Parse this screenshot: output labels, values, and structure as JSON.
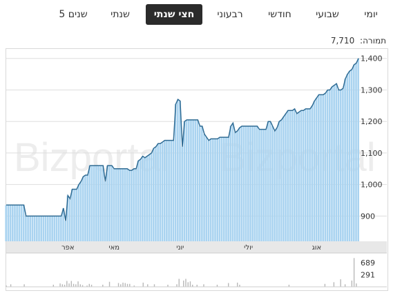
{
  "tabs": [
    {
      "label": "יומי",
      "active": false
    },
    {
      "label": "שבועי",
      "active": false
    },
    {
      "label": "חודשי",
      "active": false
    },
    {
      "label": "רבעוני",
      "active": false
    },
    {
      "label": "חצי שנתי",
      "active": true
    },
    {
      "label": "שנתי",
      "active": false
    },
    {
      "label": "5 שנים",
      "active": false
    }
  ],
  "price_label": "תמורה:",
  "price_value": "7,710",
  "watermark": [
    "Bizportal",
    "Bizportal"
  ],
  "colors": {
    "line": "#2f6b93",
    "fill": "#a9d3f0",
    "grid": "#dddddd",
    "volume": "#b8b8b8",
    "active_tab": "#2b2b2b"
  },
  "chart_data": [
    {
      "type": "area",
      "ylim": [
        820,
        1430
      ],
      "yticks": [
        "900",
        "1,000",
        "1,100",
        "1,200",
        "1,300",
        "1,400"
      ],
      "xticks": [
        "אפר",
        "מאי",
        "יוני",
        "יולי",
        "אוג"
      ],
      "values": [
        935,
        935,
        935,
        935,
        935,
        935,
        935,
        935,
        935,
        900,
        900,
        900,
        900,
        900,
        900,
        900,
        900,
        900,
        900,
        900,
        900,
        900,
        900,
        900,
        900,
        900,
        925,
        885,
        965,
        955,
        985,
        985,
        985,
        1000,
        1010,
        1025,
        1030,
        1030,
        1060,
        1060,
        1060,
        1060,
        1060,
        1060,
        1060,
        1010,
        1060,
        1060,
        1060,
        1050,
        1050,
        1050,
        1050,
        1050,
        1050,
        1050,
        1045,
        1045,
        1050,
        1050,
        1075,
        1080,
        1090,
        1085,
        1090,
        1095,
        1100,
        1115,
        1120,
        1130,
        1130,
        1135,
        1140,
        1140,
        1140,
        1140,
        1140,
        1255,
        1270,
        1265,
        1120,
        1200,
        1205,
        1205,
        1205,
        1205,
        1205,
        1205,
        1185,
        1185,
        1160,
        1150,
        1140,
        1145,
        1145,
        1145,
        1145,
        1150,
        1150,
        1150,
        1150,
        1150,
        1185,
        1195,
        1165,
        1170,
        1180,
        1185,
        1185,
        1185,
        1185,
        1185,
        1185,
        1185,
        1185,
        1175,
        1175,
        1175,
        1175,
        1200,
        1200,
        1185,
        1170,
        1180,
        1200,
        1205,
        1215,
        1225,
        1235,
        1235,
        1235,
        1240,
        1225,
        1230,
        1235,
        1235,
        1240,
        1240,
        1240,
        1250,
        1265,
        1275,
        1285,
        1285,
        1285,
        1290,
        1300,
        1300,
        1310,
        1315,
        1320,
        1300,
        1300,
        1305,
        1335,
        1350,
        1360,
        1365,
        1380,
        1385,
        1400
      ]
    },
    {
      "type": "bar",
      "yticks": [
        "689",
        "291"
      ],
      "ylim": [
        0,
        760
      ],
      "values": [
        30,
        0,
        60,
        0,
        0,
        0,
        0,
        0,
        60,
        0,
        0,
        0,
        0,
        0,
        0,
        0,
        0,
        0,
        0,
        0,
        0,
        50,
        0,
        0,
        80,
        60,
        50,
        140,
        80,
        140,
        70,
        60,
        130,
        60,
        40,
        0,
        30,
        70,
        50,
        0,
        0,
        0,
        0,
        50,
        0,
        0,
        120,
        0,
        0,
        0,
        90,
        60,
        100,
        90,
        70,
        70,
        0,
        30,
        0,
        0,
        0,
        100,
        0,
        60,
        0,
        0,
        60,
        0,
        0,
        0,
        0,
        0,
        50,
        0,
        0,
        0,
        60,
        190,
        0,
        150,
        190,
        110,
        130,
        50,
        0,
        50,
        0,
        0,
        60,
        0,
        0,
        0,
        0,
        0,
        50,
        0,
        0,
        0,
        0,
        90,
        0,
        0,
        0,
        100,
        50,
        0,
        0,
        0,
        0,
        0,
        0,
        0,
        0,
        0,
        0,
        0,
        0,
        0,
        0,
        0,
        0,
        0,
        0,
        0,
        0,
        0,
        50,
        0,
        0,
        0,
        0,
        0,
        0,
        0,
        0,
        0,
        0,
        0,
        0,
        0,
        0,
        0,
        70,
        0,
        0,
        0,
        110,
        0,
        0,
        180,
        0,
        60,
        0,
        0,
        150,
        689,
        80,
        0
      ]
    }
  ]
}
